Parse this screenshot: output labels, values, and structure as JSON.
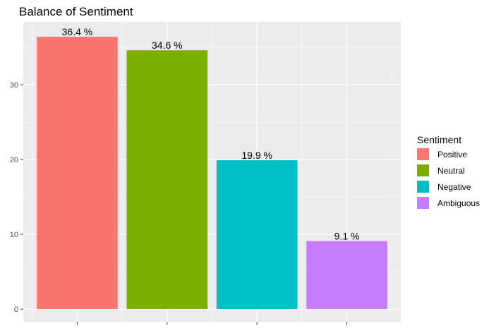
{
  "chart_data": {
    "type": "bar",
    "title": "Balance of Sentiment",
    "xlabel": "",
    "ylabel": "",
    "categories": [
      "Positive",
      "Neutral",
      "Negative",
      "Ambiguous"
    ],
    "values": [
      36.4,
      34.6,
      19.9,
      9.1
    ],
    "data_labels": [
      "36.4 %",
      "34.6 %",
      "19.9 %",
      "9.1 %"
    ],
    "colors": [
      "#F8766D",
      "#7CAE00",
      "#00BFC4",
      "#C77CFF"
    ],
    "ylim": [
      0,
      38
    ],
    "yticks": [
      0,
      10,
      20,
      30
    ],
    "ytick_labels": [
      "0",
      "10",
      "20",
      "30"
    ],
    "x_tick_labels_shown": false,
    "grid": true,
    "legend": {
      "title": "Sentiment",
      "position": "right",
      "entries": [
        "Positive",
        "Neutral",
        "Negative",
        "Ambiguous"
      ]
    },
    "panel_background": "#EBEBEB",
    "gridline_color": "#FFFFFF"
  }
}
